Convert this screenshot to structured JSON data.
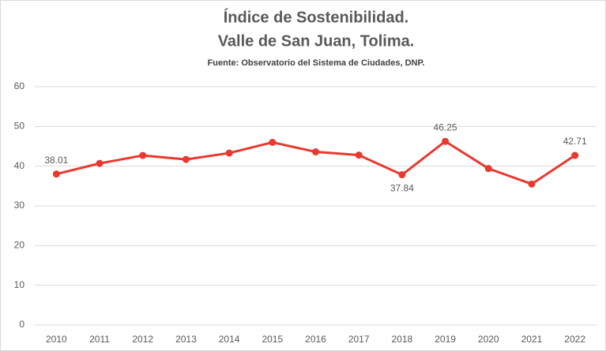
{
  "chart_data": {
    "type": "line",
    "title": [
      "Índice de Sostenibilidad.",
      "Valle de San Juan, Tolima."
    ],
    "subtitle": "Fuente: Observatorio del Sistema de Ciudades, DNP.",
    "categories": [
      "2010",
      "2011",
      "2012",
      "2013",
      "2014",
      "2015",
      "2016",
      "2017",
      "2018",
      "2019",
      "2020",
      "2021",
      "2022"
    ],
    "series": [
      {
        "name": "Índice de Sostenibilidad",
        "color": "#e8392f",
        "values": [
          38.01,
          40.7,
          42.7,
          41.7,
          43.3,
          46.0,
          43.6,
          42.8,
          37.84,
          46.25,
          39.4,
          35.5,
          42.71
        ],
        "value_labels": [
          "38.01",
          null,
          null,
          null,
          null,
          null,
          null,
          null,
          "37.84",
          "46.25",
          null,
          null,
          "42.71"
        ]
      }
    ],
    "ylim": [
      0,
      60
    ],
    "yticks": [
      0,
      10,
      20,
      30,
      40,
      50,
      60
    ],
    "grid": true,
    "legend": false
  }
}
